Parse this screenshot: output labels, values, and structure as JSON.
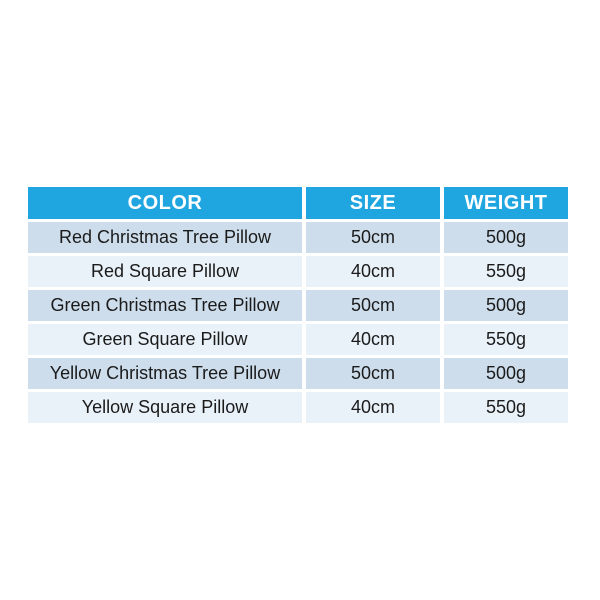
{
  "chart_data": {
    "type": "table",
    "columns": [
      "COLOR",
      "SIZE",
      "WEIGHT"
    ],
    "rows": [
      [
        "Red Christmas Tree Pillow",
        "50cm",
        "500g"
      ],
      [
        "Red Square Pillow",
        "40cm",
        "550g"
      ],
      [
        "Green Christmas Tree Pillow",
        "50cm",
        "500g"
      ],
      [
        "Green Square Pillow",
        "40cm",
        "550g"
      ],
      [
        "Yellow Christmas Tree Pillow",
        "50cm",
        "500g"
      ],
      [
        "Yellow Square Pillow",
        "40cm",
        "550g"
      ]
    ],
    "title": "",
    "legend": "none",
    "grid": "white gaps between cells, alternating row shading"
  },
  "colors": {
    "background": "#FFFFFF",
    "header_bg": "#1FA6E0",
    "header_text": "#FFFFFF",
    "row_dark_bg": "#CDDDEB",
    "row_light_bg": "#E9F1F9",
    "cell_text": "#1B1B1B"
  }
}
